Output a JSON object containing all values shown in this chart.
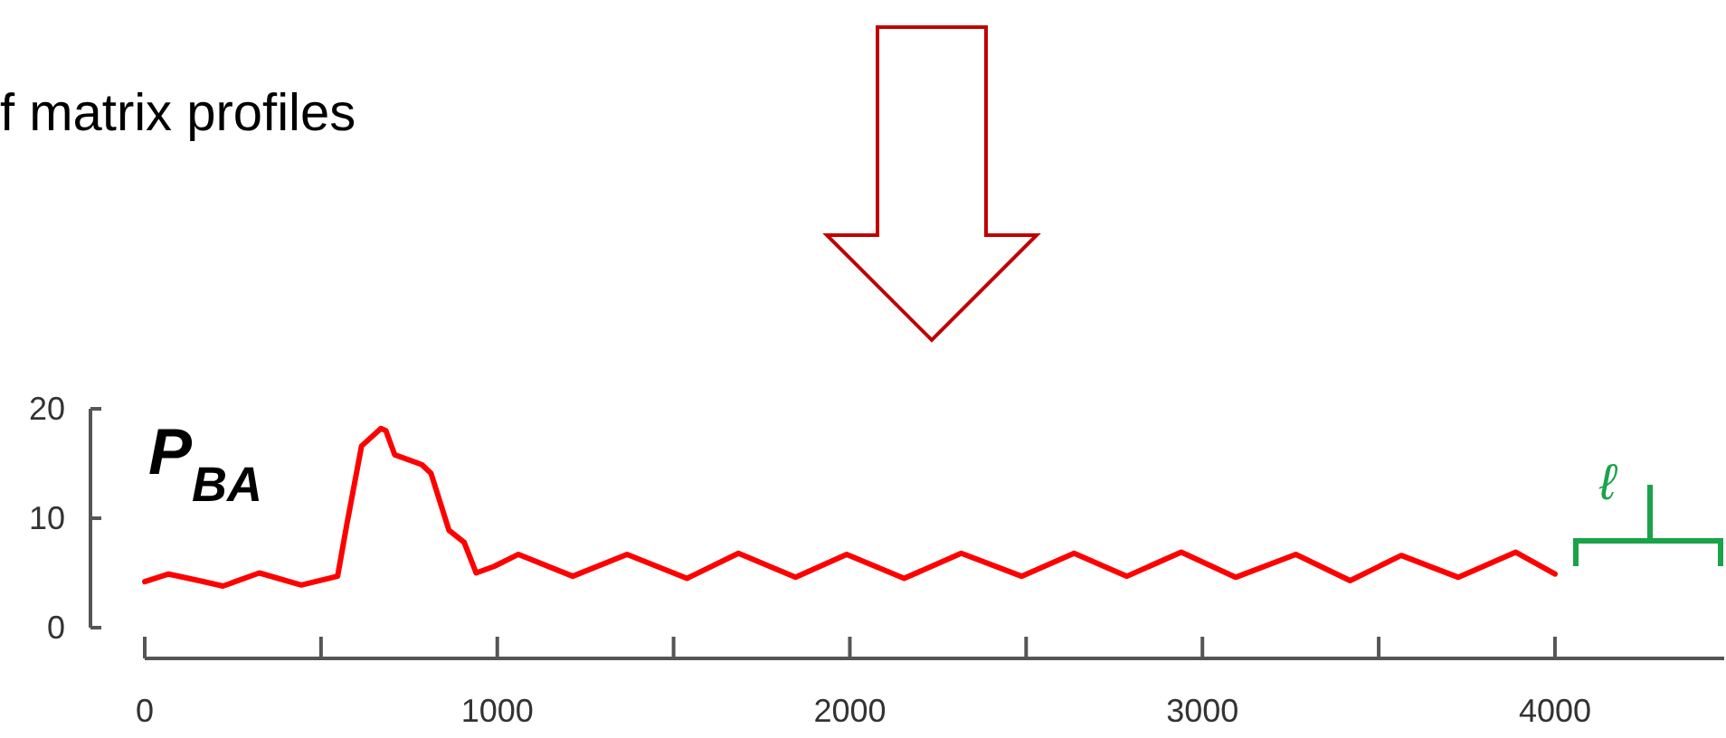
{
  "chart_data": {
    "type": "line",
    "title": "f matrix profiles",
    "x": [
      0,
      68,
      154,
      222,
      325,
      444,
      547,
      573,
      615,
      670,
      684,
      709,
      786,
      812,
      863,
      906,
      940,
      991,
      1060,
      1214,
      1368,
      1538,
      1684,
      1846,
      1991,
      2154,
      2316,
      2487,
      2636,
      2786,
      2940,
      3094,
      3265,
      3419,
      3564,
      3726,
      3889,
      4000
    ],
    "series": [
      {
        "name": "P$_{BA}$",
        "color": "#ff0000",
        "values": [
          4.2,
          4.9,
          4.3,
          3.8,
          5.0,
          3.9,
          4.7,
          9.4,
          16.6,
          18.2,
          18.0,
          15.8,
          14.9,
          14.1,
          8.9,
          7.8,
          5.0,
          5.6,
          6.7,
          4.7,
          6.7,
          4.5,
          6.8,
          4.6,
          6.7,
          4.5,
          6.8,
          4.7,
          6.8,
          4.7,
          6.9,
          4.6,
          6.7,
          4.3,
          6.6,
          4.6,
          6.9,
          4.9
        ]
      }
    ],
    "xlim": [
      0,
      4480
    ],
    "xticks": [
      0,
      {
        "value": 500,
        "label": null
      },
      1000,
      {
        "value": 1500,
        "label": null
      },
      2000,
      {
        "value": 2500,
        "label": null
      },
      3000,
      {
        "value": 3500,
        "label": null
      },
      4000
    ],
    "ylim": [
      0,
      20
    ],
    "yticks": [
      0,
      10,
      20
    ],
    "annotations": [
      "ℓ"
    ],
    "grid": false,
    "legend": false,
    "line_style": "solid",
    "marker": "none"
  }
}
